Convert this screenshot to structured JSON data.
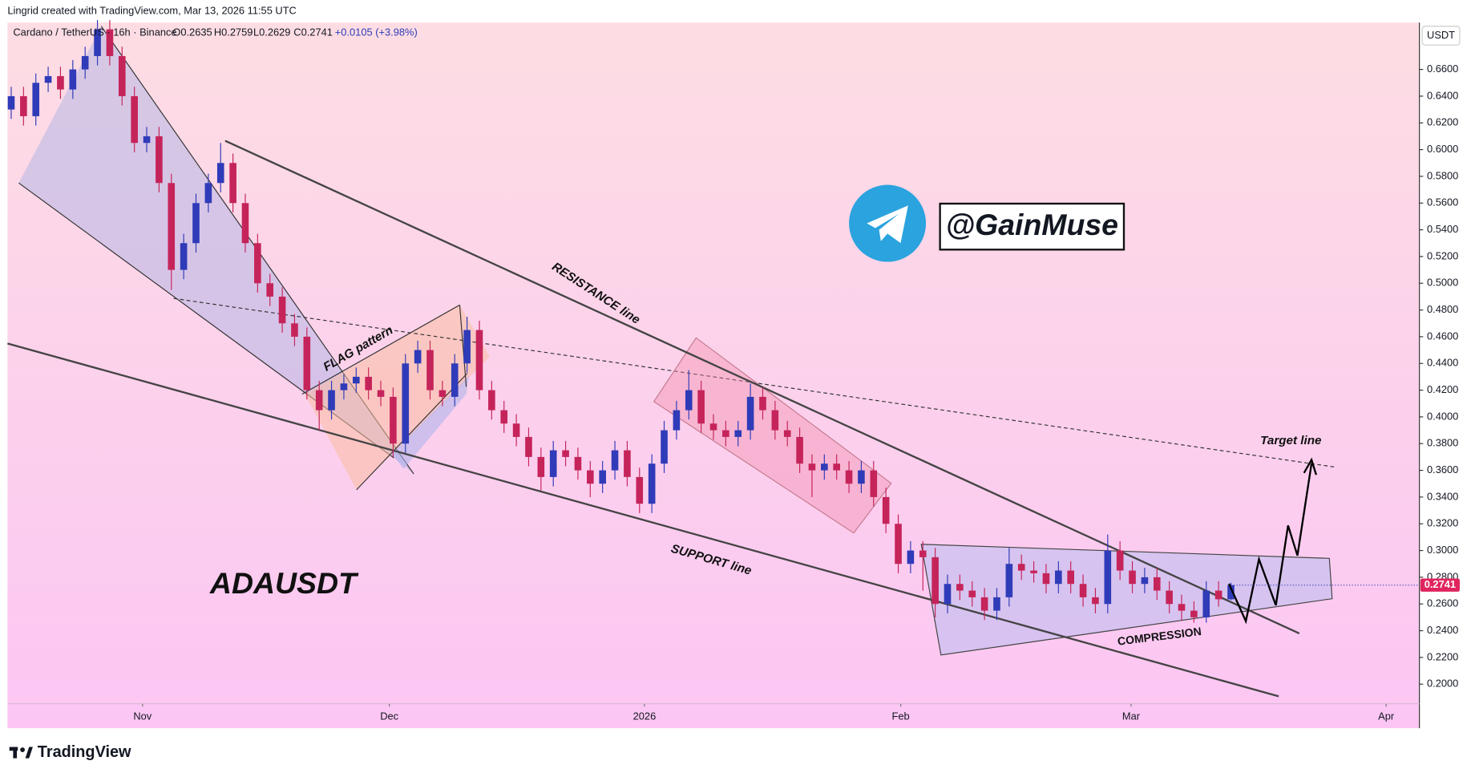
{
  "header": "Lingrid created with TradingView.com, Mar 13, 2026 11:55 UTC",
  "brand": "TradingView",
  "legend": {
    "symbol": "Cardano / TetherUS · 16h · Binance",
    "open": "O0.2635",
    "high": "H0.2759",
    "low": "L0.2629",
    "close": "C0.2741",
    "change": "+0.0105 (+3.98%)"
  },
  "currency": "USDT",
  "annotations": {
    "resistance": "RESISTANCE line",
    "support": "SUPPORT line",
    "flag": "FLAG pattern",
    "compression": "COMPRESSION",
    "target": "Target line",
    "ticker": "ADAUSDT",
    "handle": "@GainMuse"
  },
  "chart_data": {
    "type": "candlestick",
    "up_color": "#2f3bb8",
    "down_color": "#c5245a",
    "grid": false,
    "open": [
      0.63,
      0.64,
      0.625,
      0.65,
      0.655,
      0.645,
      0.66,
      0.67,
      0.69,
      0.67,
      0.64,
      0.605,
      0.61,
      0.575,
      0.51,
      0.53,
      0.56,
      0.575,
      0.59,
      0.56,
      0.53,
      0.5,
      0.49,
      0.47,
      0.46,
      0.42,
      0.405,
      0.42,
      0.425,
      0.43,
      0.42,
      0.415,
      0.38,
      0.44,
      0.45,
      0.42,
      0.415,
      0.44,
      0.465,
      0.42,
      0.405,
      0.395,
      0.385,
      0.37,
      0.355,
      0.375,
      0.37,
      0.36,
      0.35,
      0.36,
      0.375,
      0.355,
      0.335,
      0.365,
      0.39,
      0.405,
      0.42,
      0.395,
      0.39,
      0.385,
      0.39,
      0.415,
      0.405,
      0.39,
      0.385,
      0.365,
      0.36,
      0.365,
      0.36,
      0.35,
      0.36,
      0.34,
      0.32,
      0.29,
      0.3,
      0.295,
      0.26,
      0.275,
      0.27,
      0.265,
      0.255,
      0.265,
      0.29,
      0.285,
      0.283,
      0.275,
      0.285,
      0.275,
      0.265,
      0.26,
      0.3,
      0.285,
      0.275,
      0.28,
      0.27,
      0.26,
      0.255,
      0.25,
      0.27,
      0.2635
    ],
    "high": [
      0.647,
      0.647,
      0.657,
      0.662,
      0.662,
      0.667,
      0.677,
      0.697,
      0.697,
      0.677,
      0.647,
      0.617,
      0.617,
      0.582,
      0.537,
      0.567,
      0.582,
      0.605,
      0.597,
      0.567,
      0.537,
      0.507,
      0.497,
      0.477,
      0.467,
      0.427,
      0.427,
      0.432,
      0.437,
      0.437,
      0.427,
      0.422,
      0.447,
      0.457,
      0.457,
      0.427,
      0.447,
      0.475,
      0.472,
      0.427,
      0.412,
      0.402,
      0.392,
      0.377,
      0.382,
      0.382,
      0.377,
      0.367,
      0.367,
      0.382,
      0.382,
      0.362,
      0.372,
      0.397,
      0.412,
      0.435,
      0.427,
      0.402,
      0.397,
      0.397,
      0.425,
      0.422,
      0.412,
      0.397,
      0.392,
      0.372,
      0.372,
      0.372,
      0.367,
      0.367,
      0.367,
      0.347,
      0.327,
      0.307,
      0.307,
      0.302,
      0.282,
      0.282,
      0.277,
      0.272,
      0.272,
      0.302,
      0.297,
      0.292,
      0.29,
      0.292,
      0.292,
      0.282,
      0.272,
      0.312,
      0.307,
      0.292,
      0.287,
      0.287,
      0.277,
      0.267,
      0.262,
      0.277,
      0.277,
      0.2759
    ],
    "low": [
      0.623,
      0.618,
      0.618,
      0.643,
      0.638,
      0.638,
      0.653,
      0.663,
      0.663,
      0.633,
      0.598,
      0.598,
      0.568,
      0.495,
      0.503,
      0.523,
      0.553,
      0.568,
      0.553,
      0.523,
      0.493,
      0.483,
      0.463,
      0.453,
      0.413,
      0.39,
      0.398,
      0.413,
      0.418,
      0.413,
      0.408,
      0.37,
      0.373,
      0.433,
      0.413,
      0.408,
      0.408,
      0.433,
      0.413,
      0.398,
      0.388,
      0.378,
      0.363,
      0.345,
      0.348,
      0.363,
      0.353,
      0.34,
      0.343,
      0.353,
      0.348,
      0.328,
      0.328,
      0.358,
      0.383,
      0.398,
      0.388,
      0.383,
      0.378,
      0.378,
      0.383,
      0.398,
      0.383,
      0.378,
      0.358,
      0.34,
      0.353,
      0.353,
      0.343,
      0.343,
      0.333,
      0.313,
      0.283,
      0.283,
      0.27,
      0.25,
      0.253,
      0.263,
      0.258,
      0.248,
      0.248,
      0.258,
      0.278,
      0.276,
      0.268,
      0.268,
      0.268,
      0.258,
      0.253,
      0.253,
      0.278,
      0.268,
      0.268,
      0.263,
      0.253,
      0.248,
      0.246,
      0.246,
      0.258,
      0.2629
    ],
    "close": [
      0.64,
      0.625,
      0.65,
      0.655,
      0.645,
      0.66,
      0.67,
      0.69,
      0.67,
      0.64,
      0.605,
      0.61,
      0.575,
      0.51,
      0.53,
      0.56,
      0.575,
      0.59,
      0.56,
      0.53,
      0.5,
      0.49,
      0.47,
      0.46,
      0.42,
      0.405,
      0.42,
      0.425,
      0.43,
      0.42,
      0.415,
      0.38,
      0.44,
      0.45,
      0.42,
      0.415,
      0.44,
      0.465,
      0.42,
      0.405,
      0.395,
      0.385,
      0.37,
      0.355,
      0.375,
      0.37,
      0.36,
      0.35,
      0.36,
      0.375,
      0.355,
      0.335,
      0.365,
      0.39,
      0.405,
      0.42,
      0.395,
      0.39,
      0.385,
      0.39,
      0.415,
      0.405,
      0.39,
      0.385,
      0.365,
      0.36,
      0.365,
      0.36,
      0.35,
      0.36,
      0.34,
      0.32,
      0.29,
      0.3,
      0.295,
      0.26,
      0.275,
      0.27,
      0.265,
      0.255,
      0.265,
      0.29,
      0.285,
      0.283,
      0.275,
      0.285,
      0.275,
      0.265,
      0.26,
      0.3,
      0.285,
      0.275,
      0.28,
      0.27,
      0.26,
      0.255,
      0.25,
      0.27,
      0.2635,
      0.2741
    ],
    "xlim": [
      -0.3,
      114.3
    ],
    "xticks": [
      {
        "value": 10.66,
        "label": "Nov"
      },
      {
        "value": 30.69,
        "label": "Dec"
      },
      {
        "value": 51.4,
        "label": "2026"
      },
      {
        "value": 72.2,
        "label": "Feb"
      },
      {
        "value": 90.9,
        "label": "Mar"
      },
      {
        "value": 111.6,
        "label": "Apr"
      }
    ],
    "ylim": [
      0.1853,
      0.6951
    ],
    "yticks": [
      {
        "value": 0.2,
        "label": "0.2000"
      },
      {
        "value": 0.22,
        "label": "0.2200"
      },
      {
        "value": 0.24,
        "label": "0.2400"
      },
      {
        "value": 0.26,
        "label": "0.2600"
      },
      {
        "value": 0.28,
        "label": "0.2800"
      },
      {
        "value": 0.3,
        "label": "0.3000"
      },
      {
        "value": 0.32,
        "label": "0.3200"
      },
      {
        "value": 0.34,
        "label": "0.3400"
      },
      {
        "value": 0.36,
        "label": "0.3600"
      },
      {
        "value": 0.38,
        "label": "0.3800"
      },
      {
        "value": 0.4,
        "label": "0.4000"
      },
      {
        "value": 0.42,
        "label": "0.4200"
      },
      {
        "value": 0.44,
        "label": "0.4400"
      },
      {
        "value": 0.46,
        "label": "0.4600"
      },
      {
        "value": 0.48,
        "label": "0.4800"
      },
      {
        "value": 0.5,
        "label": "0.5000"
      },
      {
        "value": 0.52,
        "label": "0.5200"
      },
      {
        "value": 0.54,
        "label": "0.5400"
      },
      {
        "value": 0.56,
        "label": "0.5600"
      },
      {
        "value": 0.58,
        "label": "0.5800"
      },
      {
        "value": 0.6,
        "label": "0.6000"
      },
      {
        "value": 0.62,
        "label": "0.6200"
      },
      {
        "value": 0.64,
        "label": "0.6400"
      },
      {
        "value": 0.66,
        "label": "0.6600"
      }
    ]
  }
}
